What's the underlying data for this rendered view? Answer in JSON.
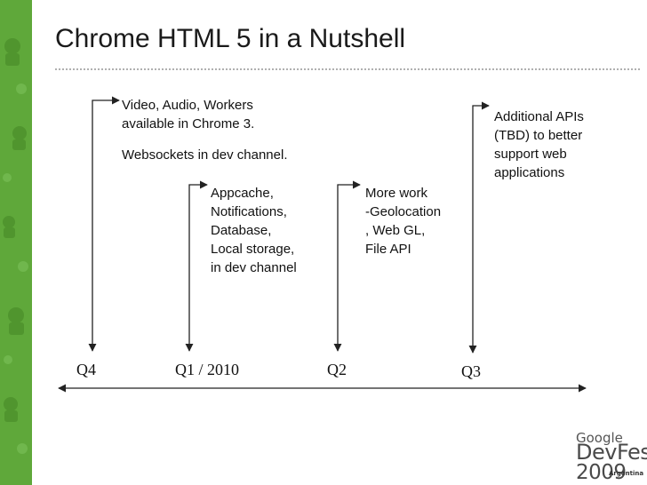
{
  "slide": {
    "title": "Chrome HTML 5 in a Nutshell"
  },
  "quarters": [
    {
      "id": "q4",
      "label": "Q4"
    },
    {
      "id": "q1",
      "label": "Q1 / 2010"
    },
    {
      "id": "q2",
      "label": "Q2"
    },
    {
      "id": "q3",
      "label": "Q3"
    }
  ],
  "notes": {
    "q4": {
      "lines": [
        "Video, Audio, Workers",
        "available in Chrome 3."
      ],
      "extra": "Websockets in dev channel."
    },
    "q1": {
      "lines": [
        "Appcache,",
        "Notifications,",
        "Database,",
        "Local storage,",
        "in dev channel"
      ]
    },
    "q2": {
      "lines": [
        "More work",
        "-Geolocation",
        ", Web GL,",
        "File API"
      ]
    },
    "q3": {
      "lines": [
        "Additional APIs",
        "(TBD) to better",
        "support web",
        "applications"
      ]
    }
  },
  "logo": {
    "google": "Google",
    "devfest": "DevFest",
    "year": "2009",
    "country": "Argentina"
  },
  "colors": {
    "accent_green": "#5fa83a",
    "line": "#222222"
  },
  "icons": [
    "android-icon",
    "arrow-icon"
  ]
}
